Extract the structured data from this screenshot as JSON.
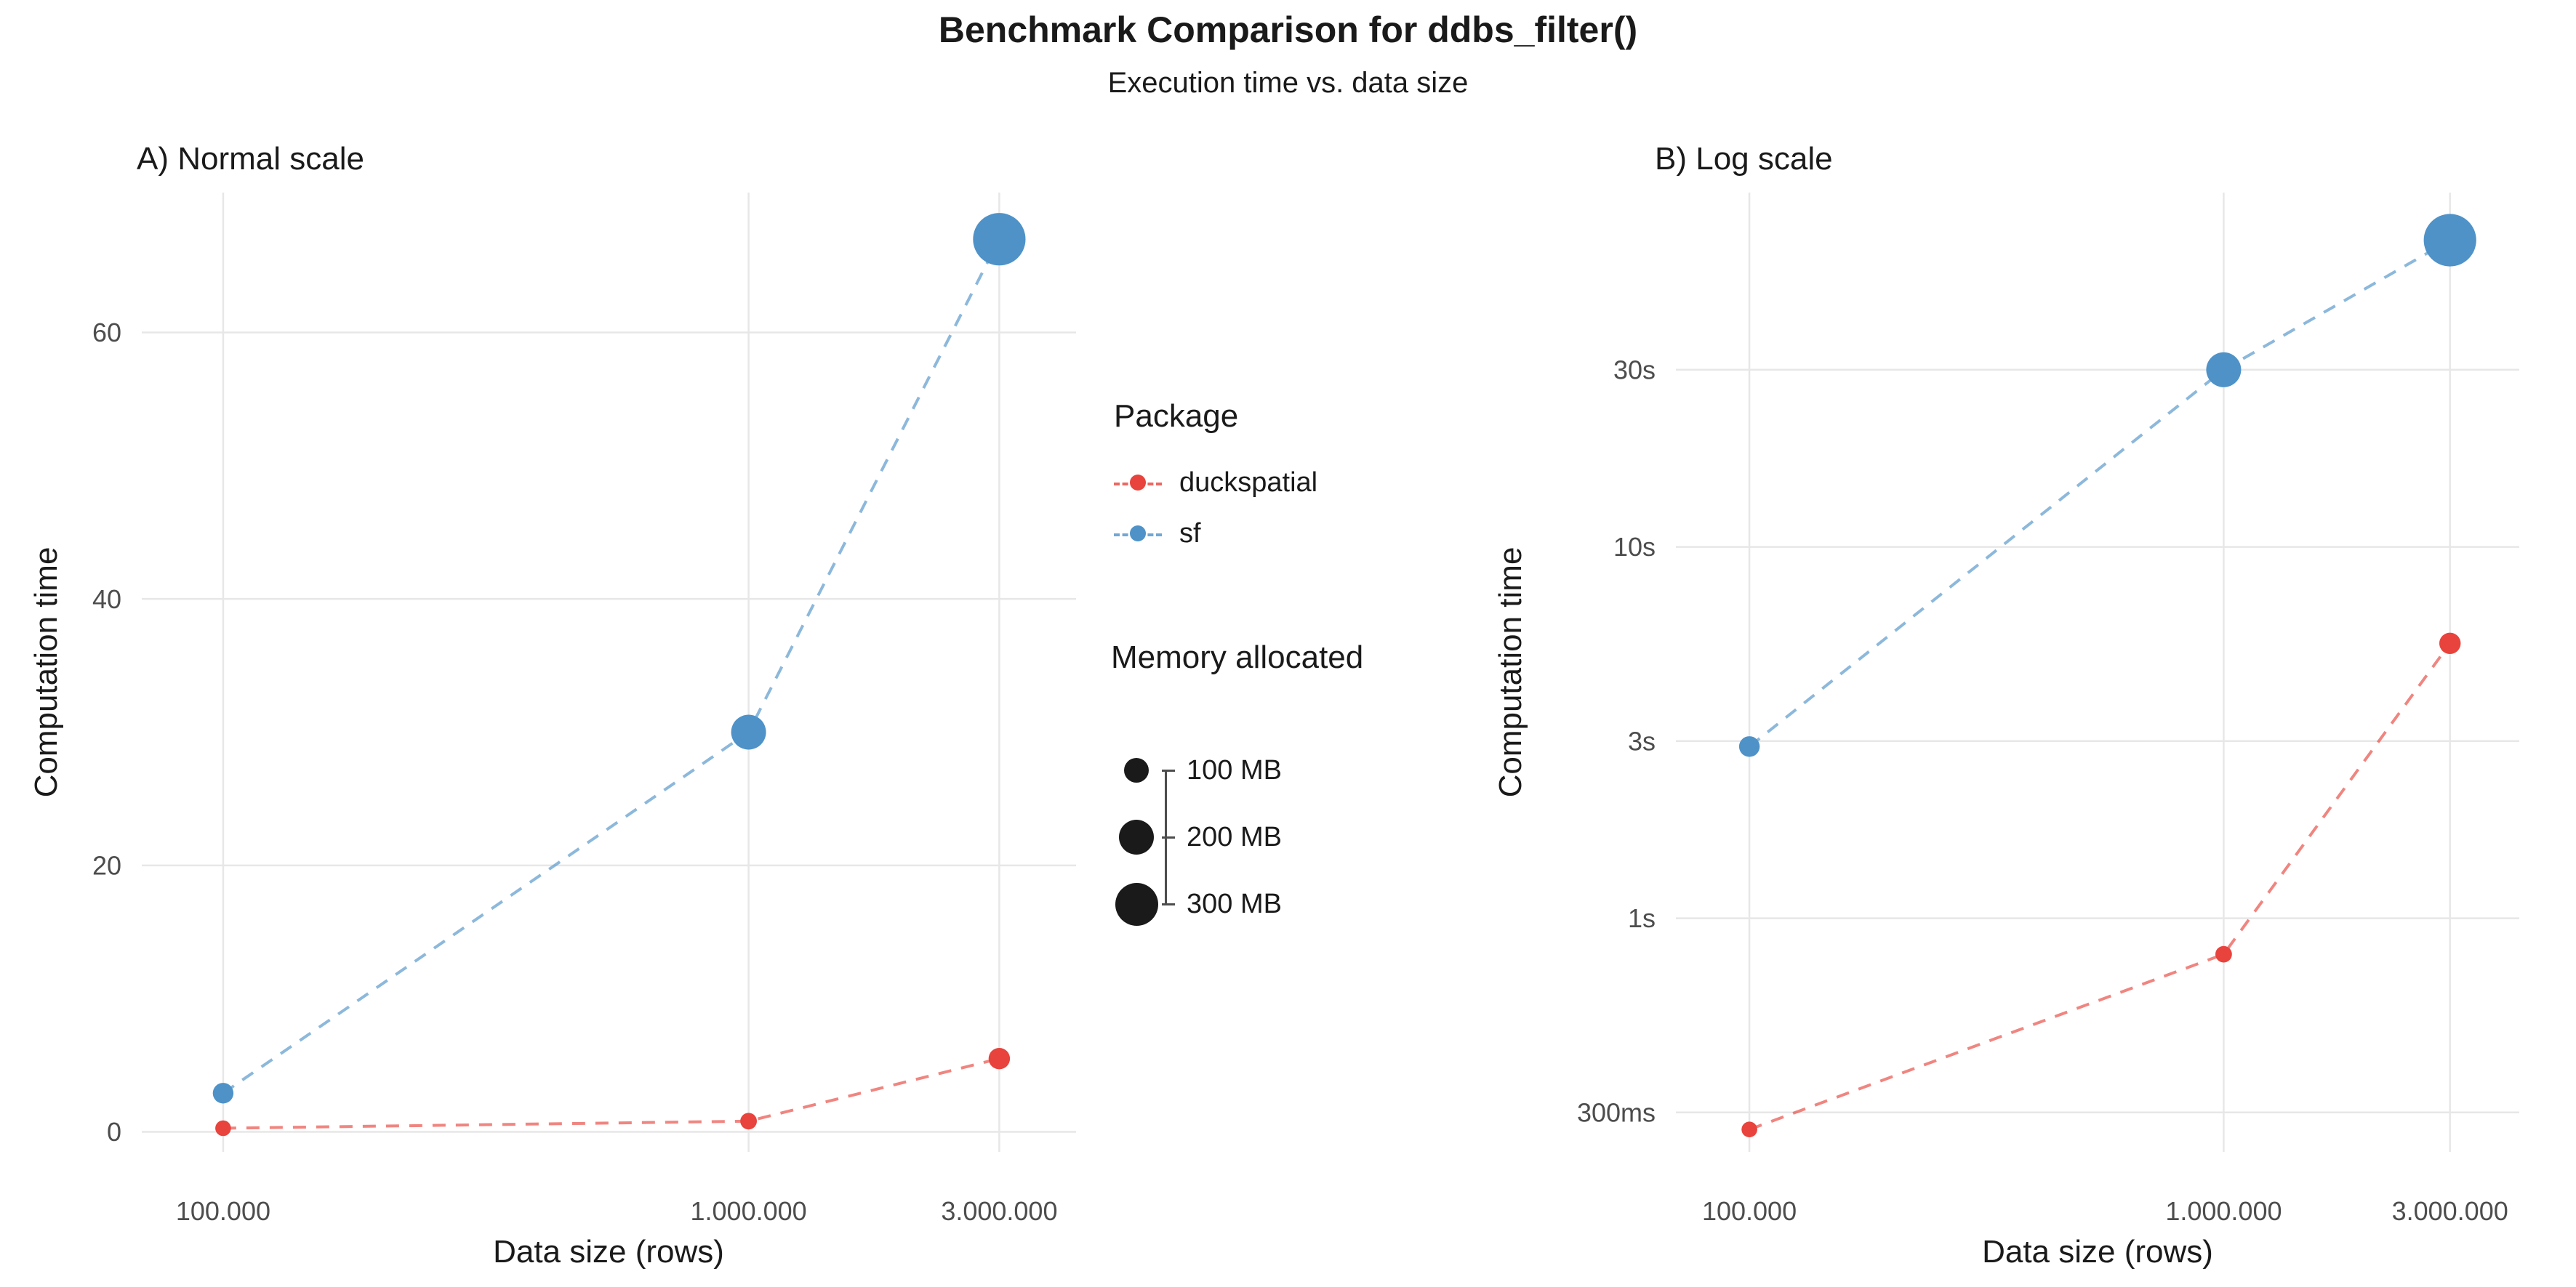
{
  "header": {
    "title": "Benchmark Comparison for ddbs_filter()",
    "subtitle": "Execution time vs. data size"
  },
  "style": {
    "duckspatial_color": "#E8433C",
    "sf_color": "#4E92C8",
    "grid_color": "#E7E7E7",
    "tick_label_color": "#4D4D4D",
    "text_color": "#1A1A1A",
    "memory_circle_color": "#1A1A1A",
    "background": "#FFFFFF"
  },
  "legend": {
    "package": {
      "title": "Package",
      "items": [
        {
          "label": "duckspatial",
          "color": "#E8433C"
        },
        {
          "label": "sf",
          "color": "#4E92C8"
        }
      ]
    },
    "memory": {
      "title": "Memory allocated",
      "items": [
        {
          "label": "100 MB",
          "mb": 100
        },
        {
          "label": "200 MB",
          "mb": 200
        },
        {
          "label": "300 MB",
          "mb": 300
        }
      ]
    }
  },
  "chart_data": [
    {
      "type": "scatter",
      "panel_label": "A) Normal scale",
      "xlabel": "Data size (rows)",
      "ylabel": "Computation time",
      "x_scale": "log10",
      "y_scale": "linear",
      "x_domain": [
        70000,
        4200000
      ],
      "y_domain": [
        -1.5,
        70.5
      ],
      "grid": true,
      "x_ticks": [
        {
          "value": 100000,
          "label": "100.000"
        },
        {
          "value": 1000000,
          "label": "1.000.000"
        },
        {
          "value": 3000000,
          "label": "3.000.000"
        }
      ],
      "y_ticks": [
        {
          "value": 0,
          "label": "0"
        },
        {
          "value": 20,
          "label": "20"
        },
        {
          "value": 40,
          "label": "40"
        },
        {
          "value": 60,
          "label": "60"
        }
      ],
      "series": [
        {
          "name": "duckspatial",
          "color": "#E8433C",
          "x": [
            100000,
            1000000,
            3000000
          ],
          "y": [
            0.27,
            0.8,
            5.5
          ],
          "memory_mb": [
            40,
            45,
            75
          ]
        },
        {
          "name": "sf",
          "color": "#4E92C8",
          "x": [
            100000,
            1000000,
            3000000
          ],
          "y": [
            2.9,
            30,
            67
          ],
          "memory_mb": [
            70,
            200,
            450
          ]
        }
      ]
    },
    {
      "type": "scatter",
      "panel_label": "B) Log scale",
      "xlabel": "Data size (rows)",
      "ylabel": "Computation time",
      "x_scale": "log10",
      "y_scale": "log10",
      "x_domain": [
        70000,
        4200000
      ],
      "y_domain": [
        0.235,
        90
      ],
      "grid": true,
      "x_ticks": [
        {
          "value": 100000,
          "label": "100.000"
        },
        {
          "value": 1000000,
          "label": "1.000.000"
        },
        {
          "value": 3000000,
          "label": "3.000.000"
        }
      ],
      "y_ticks": [
        {
          "value": 0.3,
          "label": "300ms"
        },
        {
          "value": 1,
          "label": "1s"
        },
        {
          "value": 3,
          "label": "3s"
        },
        {
          "value": 10,
          "label": "10s"
        },
        {
          "value": 30,
          "label": "30s"
        }
      ],
      "series": [
        {
          "name": "duckspatial",
          "color": "#E8433C",
          "x": [
            100000,
            1000000,
            3000000
          ],
          "y": [
            0.27,
            0.8,
            5.5
          ],
          "memory_mb": [
            40,
            45,
            75
          ]
        },
        {
          "name": "sf",
          "color": "#4E92C8",
          "x": [
            100000,
            1000000,
            3000000
          ],
          "y": [
            2.9,
            30,
            67
          ],
          "memory_mb": [
            70,
            200,
            450
          ]
        }
      ]
    }
  ]
}
